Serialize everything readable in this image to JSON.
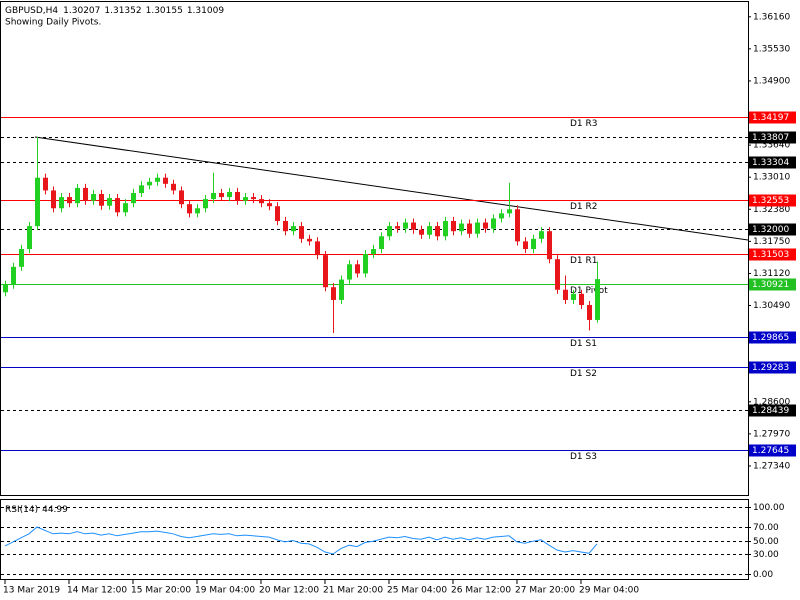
{
  "chart_data": {
    "type": "candlestick",
    "symbol": "GBPUSD,H4",
    "subtitle": "Showing Daily Pivots.",
    "categories": [
      "13 Mar 2019",
      null,
      null,
      null,
      null,
      null,
      null,
      null,
      "14 Mar 12:00",
      null,
      null,
      null,
      null,
      null,
      null,
      null,
      "15 Mar 20:00",
      null,
      null,
      null,
      null,
      null,
      null,
      null,
      "19 Mar 04:00",
      null,
      null,
      null,
      null,
      null,
      null,
      null,
      "20 Mar 12:00",
      null,
      null,
      null,
      null,
      null,
      null,
      null,
      "21 Mar 20:00",
      null,
      null,
      null,
      null,
      null,
      null,
      null,
      "25 Mar 04:00",
      null,
      null,
      null,
      null,
      null,
      null,
      null,
      "26 Mar 12:00",
      null,
      null,
      null,
      null,
      null,
      null,
      null,
      "27 Mar 20:00",
      null,
      null,
      null,
      null,
      null,
      null,
      null,
      "29 Mar 04:00",
      null,
      null
    ],
    "open": [
      1.3075,
      1.309,
      1.3125,
      1.316,
      1.3205,
      1.33,
      1.3275,
      1.324,
      1.3262,
      1.325,
      1.328,
      1.3255,
      1.3268,
      1.3245,
      1.326,
      1.3232,
      1.325,
      1.327,
      1.3285,
      1.3292,
      1.33,
      1.3288,
      1.3275,
      1.3248,
      1.323,
      1.324,
      1.3258,
      1.327,
      1.3262,
      1.3272,
      1.3255,
      1.3262,
      1.3258,
      1.325,
      1.3244,
      1.3215,
      1.3195,
      1.3205,
      1.318,
      1.3175,
      1.3148,
      1.3085,
      1.306,
      1.31,
      1.313,
      1.3112,
      1.315,
      1.316,
      1.3185,
      1.3205,
      1.32,
      1.3212,
      1.3198,
      1.3188,
      1.3205,
      1.3185,
      1.3215,
      1.3195,
      1.321,
      1.319,
      1.3212,
      1.32,
      1.322,
      1.323,
      1.3238,
      1.3175,
      1.316,
      1.318,
      1.3195,
      1.314,
      1.308,
      1.306,
      1.3072,
      1.305,
      1.30207
    ],
    "high": [
      1.3098,
      1.3133,
      1.3168,
      1.3213,
      1.338,
      1.3308,
      1.3283,
      1.327,
      1.327,
      1.3288,
      1.3288,
      1.3276,
      1.3276,
      1.3268,
      1.3268,
      1.3258,
      1.3278,
      1.3293,
      1.33,
      1.3308,
      1.3308,
      1.3296,
      1.3283,
      1.3256,
      1.3248,
      1.3266,
      1.331,
      1.3278,
      1.328,
      1.328,
      1.327,
      1.327,
      1.3266,
      1.3258,
      1.3252,
      1.3223,
      1.3213,
      1.3213,
      1.3188,
      1.3183,
      1.3156,
      1.3093,
      1.3108,
      1.3138,
      1.3138,
      1.3158,
      1.3168,
      1.3193,
      1.3213,
      1.3213,
      1.322,
      1.322,
      1.3206,
      1.3213,
      1.3213,
      1.3223,
      1.3223,
      1.3218,
      1.3218,
      1.322,
      1.322,
      1.3228,
      1.3238,
      1.329,
      1.3246,
      1.3183,
      1.3188,
      1.3203,
      1.3203,
      1.3148,
      1.3108,
      1.308,
      1.308,
      1.3058,
      1.31352
    ],
    "low": [
      1.3067,
      1.3082,
      1.3117,
      1.3152,
      1.3197,
      1.3267,
      1.3232,
      1.3232,
      1.3242,
      1.3242,
      1.3247,
      1.3247,
      1.3237,
      1.3237,
      1.3224,
      1.3224,
      1.3242,
      1.3262,
      1.3277,
      1.3284,
      1.328,
      1.3267,
      1.324,
      1.3222,
      1.3222,
      1.3232,
      1.325,
      1.3254,
      1.3254,
      1.3247,
      1.3247,
      1.325,
      1.3242,
      1.3236,
      1.3207,
      1.3187,
      1.3187,
      1.3172,
      1.3167,
      1.314,
      1.3077,
      1.2995,
      1.3052,
      1.3092,
      1.3104,
      1.3104,
      1.3142,
      1.3152,
      1.3177,
      1.3192,
      1.3192,
      1.319,
      1.318,
      1.318,
      1.3177,
      1.3177,
      1.3187,
      1.3187,
      1.3182,
      1.3182,
      1.3192,
      1.3192,
      1.3212,
      1.3222,
      1.3167,
      1.3152,
      1.3152,
      1.3172,
      1.3132,
      1.3072,
      1.3052,
      1.3052,
      1.3042,
      1.3,
      1.30155
    ],
    "close": [
      1.309,
      1.3125,
      1.316,
      1.3205,
      1.33,
      1.3275,
      1.324,
      1.3262,
      1.325,
      1.328,
      1.3255,
      1.3268,
      1.3245,
      1.326,
      1.3232,
      1.325,
      1.327,
      1.3285,
      1.3292,
      1.33,
      1.3288,
      1.3275,
      1.3248,
      1.323,
      1.324,
      1.3258,
      1.327,
      1.3262,
      1.3272,
      1.3255,
      1.3262,
      1.3258,
      1.325,
      1.3244,
      1.3215,
      1.3195,
      1.3205,
      1.318,
      1.3175,
      1.3148,
      1.3085,
      1.306,
      1.31,
      1.313,
      1.3112,
      1.315,
      1.316,
      1.3185,
      1.3205,
      1.32,
      1.3212,
      1.3198,
      1.3188,
      1.3205,
      1.3185,
      1.3215,
      1.3195,
      1.321,
      1.319,
      1.3212,
      1.32,
      1.322,
      1.323,
      1.3238,
      1.3175,
      1.316,
      1.318,
      1.3195,
      1.314,
      1.308,
      1.306,
      1.3072,
      1.305,
      1.30207,
      1.31009
    ],
    "up_color": "#22d022",
    "down_color": "#e8161b",
    "ylim": [
      1.2677,
      1.3645
    ],
    "yticks": [
      {
        "value": 1.3616,
        "label": "1.36160"
      },
      {
        "value": 1.3553,
        "label": "1.35530"
      },
      {
        "value": 1.349,
        "label": "1.34900"
      },
      {
        "value": 1.3364,
        "label": "1.33640"
      },
      {
        "value": 1.3301,
        "label": "1.33010"
      },
      {
        "value": 1.3238,
        "label": "1.32380"
      },
      {
        "value": 1.3175,
        "label": "1.31750"
      },
      {
        "value": 1.3112,
        "label": "1.31120"
      },
      {
        "value": 1.3049,
        "label": "1.30490"
      },
      {
        "value": 1.286,
        "label": "1.28600"
      },
      {
        "value": 1.2797,
        "label": "1.27970"
      },
      {
        "value": 1.2734,
        "label": "1.27340"
      }
    ],
    "levels": [
      {
        "value": 1.34197,
        "name": "D1 R3",
        "color": "#ff0000",
        "style": "solid"
      },
      {
        "value": 1.33807,
        "color": "#000000",
        "style": "dashed"
      },
      {
        "value": 1.33304,
        "color": "#000000",
        "style": "dashed"
      },
      {
        "value": 1.32553,
        "name": "D1 R2",
        "color": "#ff0000",
        "style": "solid"
      },
      {
        "value": {
          "value": 1.32,
          "label": "1.32000"
        },
        "color": "#000000",
        "style": "dashed"
      },
      {
        "value": 1.31503,
        "name": "D1 R1",
        "color": "#ff0000",
        "style": "solid"
      },
      {
        "value": 1.30921,
        "name": "D1 Pivot",
        "color": "#22c022",
        "style": "solid"
      },
      {
        "value": 1.29865,
        "name": "D1 S1",
        "color": "#0000c8",
        "style": "solid"
      },
      {
        "value": 1.29283,
        "name": "D1 S2",
        "color": "#0000c8",
        "style": "solid"
      },
      {
        "value": 1.28439,
        "color": "#000000",
        "style": "dashed"
      },
      {
        "value": 1.27645,
        "name": "D1 S3",
        "color": "#0000c8",
        "style": "solid"
      }
    ],
    "rsi": {
      "name": "RSI(14)",
      "color": "#1e90ff",
      "values": [
        42,
        48,
        54,
        60,
        70,
        65,
        60,
        61,
        60,
        63,
        60,
        61,
        58,
        60,
        57,
        59,
        61,
        63,
        63,
        64,
        62,
        60,
        56,
        54,
        56,
        58,
        60,
        59,
        60,
        57,
        58,
        57,
        56,
        55,
        51,
        48,
        50,
        46,
        45,
        40,
        33,
        30,
        38,
        43,
        41,
        47,
        49,
        52,
        55,
        54,
        56,
        53,
        52,
        55,
        51,
        55,
        52,
        54,
        51,
        54,
        52,
        55,
        56,
        57,
        48,
        46,
        49,
        51,
        43,
        36,
        33,
        35,
        33,
        31,
        44.99
      ],
      "ylim": [
        -7,
        110
      ],
      "yticks": [
        {
          "value": 100,
          "label": "100.00"
        },
        {
          "value": 70,
          "label": "70.00"
        },
        {
          "value": 50,
          "label": "50.00"
        },
        {
          "value": 30,
          "label": "30.00"
        },
        {
          "value": 0,
          "label": "0.00"
        }
      ]
    }
  }
}
